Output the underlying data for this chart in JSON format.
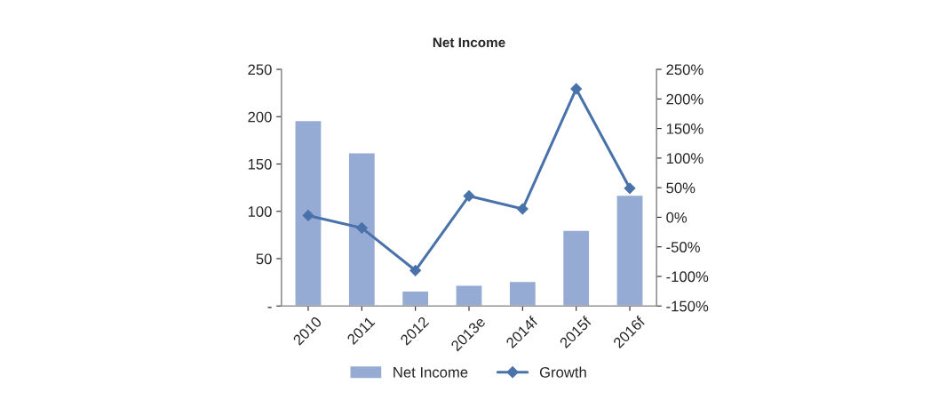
{
  "chart_data": {
    "type": "bar",
    "title": "Net Income",
    "categories": [
      "2010",
      "2011",
      "2012",
      "2013e",
      "2014f",
      "2015f",
      "2016f"
    ],
    "series": [
      {
        "name": "Net Income",
        "color": "#95abd4",
        "values": [
          196,
          162,
          16,
          22,
          26,
          80,
          117
        ]
      },
      {
        "name": "Growth",
        "type": "line",
        "axis": "y2",
        "color": "#4a72aa",
        "marker": "diamond",
        "values": [
          3,
          -18,
          -90,
          36,
          14,
          217,
          49
        ]
      }
    ],
    "ylim": [
      0,
      250
    ],
    "yticks": [
      {
        "value": 0,
        "label": "-"
      },
      50,
      100,
      150,
      200,
      250
    ],
    "y2lim": [
      -150,
      250
    ],
    "y2ticks": [
      {
        "value": -150,
        "label": "-150%"
      },
      {
        "value": -100,
        "label": "-100%"
      },
      {
        "value": -50,
        "label": "-50%"
      },
      {
        "value": 0,
        "label": "0%"
      },
      {
        "value": 50,
        "label": "50%"
      },
      {
        "value": 100,
        "label": "100%"
      },
      {
        "value": 150,
        "label": "150%"
      },
      {
        "value": 200,
        "label": "200%"
      },
      {
        "value": 250,
        "label": "250%"
      }
    ],
    "legend": "bottom",
    "grid": false
  }
}
